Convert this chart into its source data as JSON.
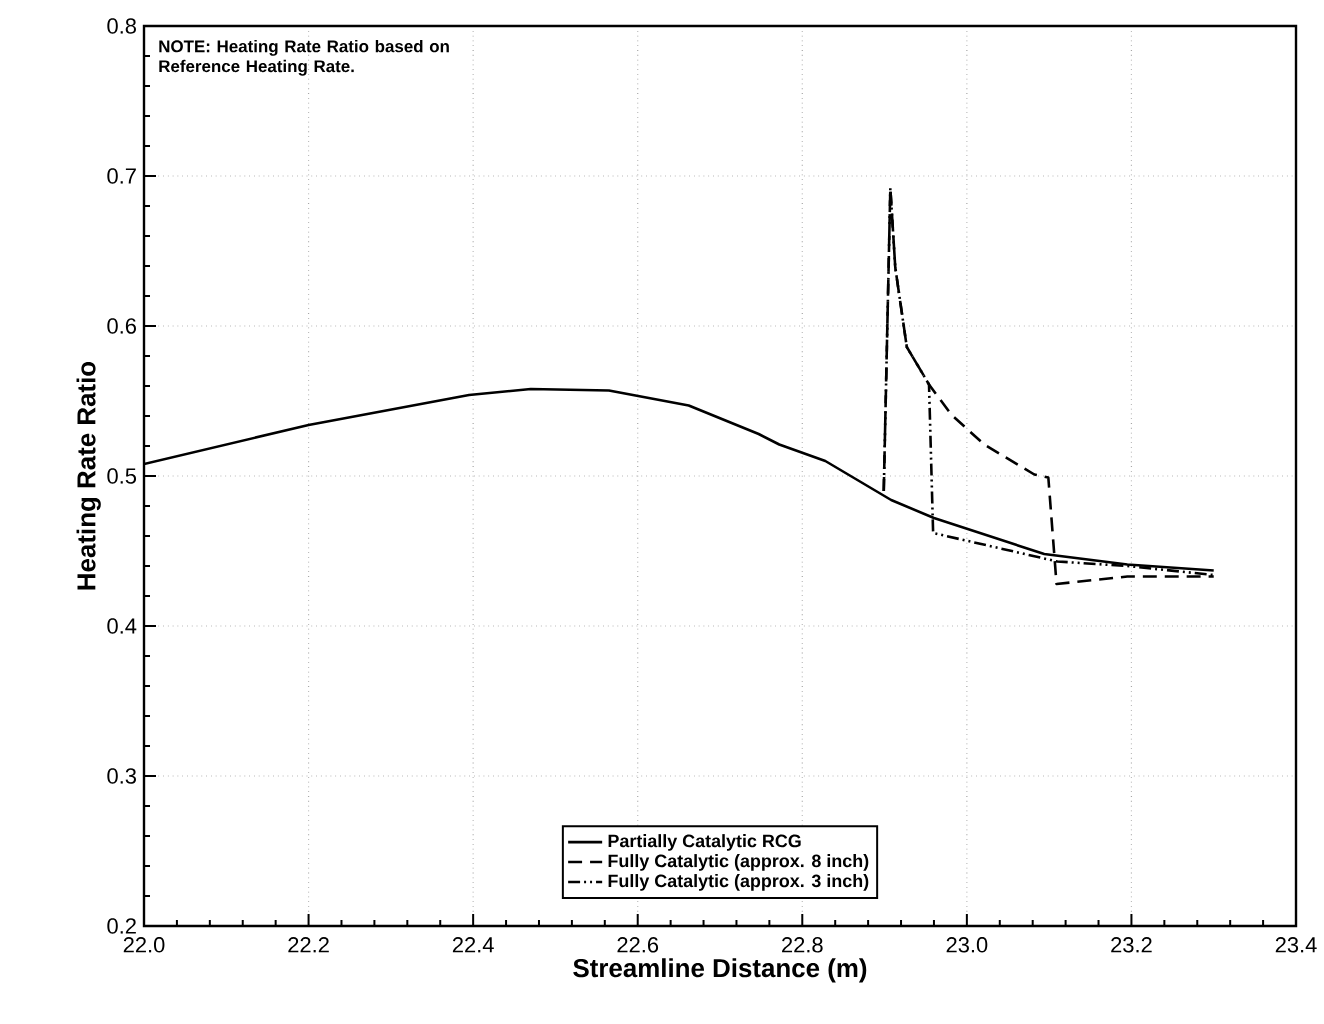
{
  "chart_data": {
    "type": "line",
    "xlabel": "Streamline Distance (m)",
    "ylabel": "Heating Rate Ratio",
    "annotations": [
      "NOTE: Heating Rate Ratio based on Reference Heating Rate."
    ],
    "xlim": [
      22.0,
      23.4
    ],
    "xticks": [
      {
        "value": 22.0,
        "label": "22.0"
      },
      22.2,
      22.4,
      22.6,
      22.8,
      {
        "value": 23.0,
        "label": "23.0"
      },
      23.2,
      23.4
    ],
    "ylim": [
      0.2,
      0.8
    ],
    "yticks": [
      0.2,
      0.3,
      0.4,
      0.5,
      0.6,
      0.7,
      0.8
    ],
    "grid": true,
    "legend": "bottom",
    "marker": "none",
    "series": [
      {
        "name": "Partially Catalytic RCG",
        "color": "#000000",
        "line_style": "solid",
        "x": [
          22.0,
          22.2,
          22.395,
          22.47,
          22.565,
          22.662,
          22.747,
          22.772,
          22.828,
          22.908,
          22.96,
          23.094,
          23.195,
          23.3
        ],
        "values": [
          0.508,
          0.534,
          0.554,
          0.558,
          0.557,
          0.547,
          0.528,
          0.521,
          0.51,
          0.484,
          0.472,
          0.448,
          0.441,
          0.437
        ]
      },
      {
        "name": "Fully Catalytic (approx. 8 inch)",
        "color": "#000000",
        "line_style": "dashed",
        "x": [
          22.899,
          22.907,
          22.913,
          22.927,
          22.954,
          22.981,
          23.021,
          23.082,
          23.099,
          23.109,
          23.195,
          23.3
        ],
        "values": [
          0.49,
          0.692,
          0.639,
          0.586,
          0.561,
          0.541,
          0.521,
          0.501,
          0.499,
          0.428,
          0.433,
          0.433
        ]
      },
      {
        "name": "Fully Catalytic (approx. 3 inch)",
        "color": "#000000",
        "line_style": "dashdot",
        "x": [
          22.899,
          22.907,
          22.913,
          22.927,
          22.954,
          22.959,
          23.11,
          23.195,
          23.3
        ],
        "values": [
          0.49,
          0.692,
          0.639,
          0.586,
          0.561,
          0.462,
          0.443,
          0.44,
          0.434
        ]
      }
    ]
  }
}
